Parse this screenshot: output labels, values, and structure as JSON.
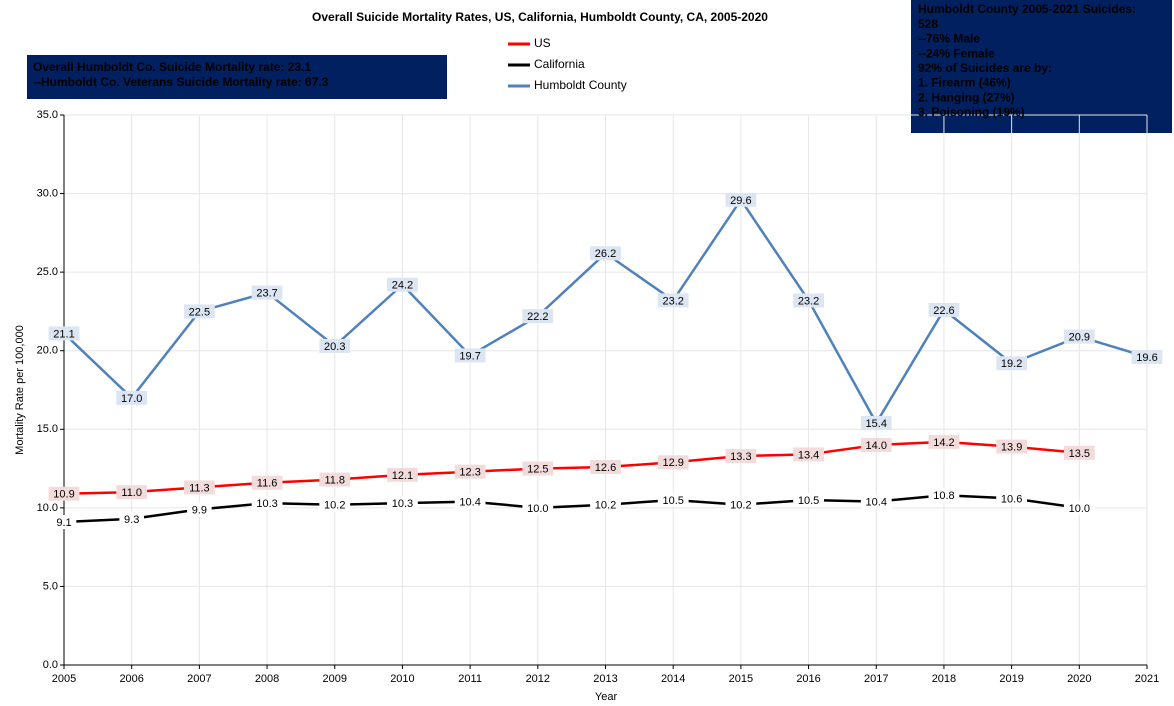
{
  "chart_data": {
    "type": "line",
    "title": "Overall Suicide Mortality Rates, US, California, Humboldt County, CA, 2005-2020",
    "x_label": "Year",
    "y_label": "Mortality Rate per 100,000",
    "x": [
      2005,
      2006,
      2007,
      2008,
      2009,
      2010,
      2011,
      2012,
      2013,
      2014,
      2015,
      2016,
      2017,
      2018,
      2019,
      2020,
      2021
    ],
    "xlim": [
      2005,
      2021
    ],
    "xticks": [
      2005,
      2006,
      2007,
      2008,
      2009,
      2010,
      2011,
      2012,
      2013,
      2014,
      2015,
      2016,
      2017,
      2018,
      2019,
      2020,
      2021
    ],
    "ylim": [
      0,
      35
    ],
    "yticks": [
      {
        "value": 0,
        "label": "0.0"
      },
      {
        "value": 5,
        "label": "5.0"
      },
      {
        "value": 10,
        "label": "10.0"
      },
      {
        "value": 15,
        "label": "15.0"
      },
      {
        "value": 20,
        "label": "20.0"
      },
      {
        "value": 25,
        "label": "25.0"
      },
      {
        "value": 30,
        "label": "30.0"
      },
      {
        "value": 35,
        "label": "35.0"
      }
    ],
    "grid": true,
    "series": [
      {
        "name": "US",
        "color": "#ff0000",
        "label_bg": "#f2dcdb",
        "values": [
          10.9,
          11.0,
          11.3,
          11.6,
          11.8,
          12.1,
          12.3,
          12.5,
          12.6,
          12.9,
          13.3,
          13.4,
          14.0,
          14.2,
          13.9,
          13.5,
          null
        ],
        "value_labels": [
          "10.9",
          "11.0",
          "11.3",
          "11.6",
          "11.8",
          "12.1",
          "12.3",
          "12.5",
          "12.6",
          "12.9",
          "13.3",
          "13.4",
          "14.0",
          "14.2",
          "13.9",
          "13.5",
          null
        ]
      },
      {
        "name": "California",
        "color": "#000000",
        "label_bg": "#ffffff",
        "values": [
          9.1,
          9.3,
          9.9,
          10.3,
          10.2,
          10.3,
          10.4,
          10.0,
          10.2,
          10.5,
          10.2,
          10.5,
          10.4,
          10.8,
          10.6,
          10.0,
          null
        ],
        "value_labels": [
          "9.1",
          "9.3",
          "9.9",
          "10.3",
          "10.2",
          "10.3",
          "10.4",
          "10.0",
          "10.2",
          "10.5",
          "10.2",
          "10.5",
          "10.4",
          "10.8",
          "10.6",
          "10.0",
          null
        ]
      },
      {
        "name": "Humboldt County",
        "color": "#4f81bd",
        "label_bg": "#dce6f2",
        "values": [
          21.1,
          17.0,
          22.5,
          23.7,
          20.3,
          24.2,
          19.7,
          22.2,
          26.2,
          23.2,
          29.6,
          23.2,
          15.4,
          22.6,
          19.2,
          20.9,
          19.6
        ],
        "value_labels": [
          "21.1",
          "17.0",
          "22.5",
          "23.7",
          "20.3",
          "24.2",
          "19.7",
          "22.2",
          "26.2",
          "23.2",
          "29.6",
          "23.2",
          "15.4",
          "22.6",
          "19.2",
          "20.9",
          "19.6"
        ]
      }
    ],
    "annotations": [
      {
        "lines": [
          "Overall Humboldt Co. Suicide Mortality rate:  23.1",
          "--Humboldt Co. Veterans Suicide Mortality rate:  67.3"
        ]
      },
      {
        "lines": [
          "Humboldt County 2005-2021 Suicides:",
          "528",
          "--76%  Male",
          "--24%  Female",
          "92%  of Suicides are by:",
          "1.  Firearm (46%)",
          "2.  Hanging (27%)",
          "3.  Poisoning (19%)"
        ]
      }
    ]
  }
}
